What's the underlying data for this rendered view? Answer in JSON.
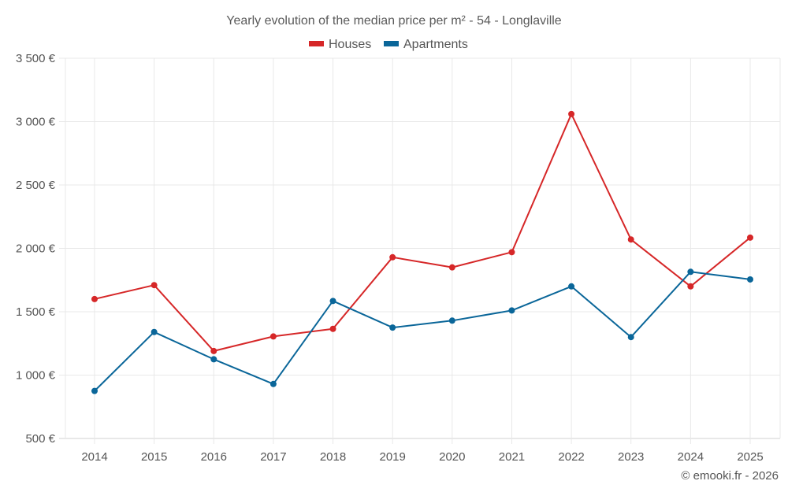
{
  "chart_data": {
    "type": "line",
    "title": "Yearly evolution of the median price per m² - 54 - Longlaville",
    "xlabel": "",
    "ylabel": "",
    "x": [
      "2014",
      "2015",
      "2016",
      "2017",
      "2018",
      "2019",
      "2020",
      "2021",
      "2022",
      "2023",
      "2024",
      "2025"
    ],
    "ylim": [
      500,
      3500
    ],
    "yticks": [
      500,
      1000,
      1500,
      2000,
      2500,
      3000,
      3500
    ],
    "ytick_labels": [
      "500 €",
      "1 000 €",
      "1 500 €",
      "2 000 €",
      "2 500 €",
      "3 000 €",
      "3 500 €"
    ],
    "grid": true,
    "legend_position": "top-center",
    "series": [
      {
        "name": "Houses",
        "color": "#d62728",
        "values": [
          1600,
          1710,
          1190,
          1305,
          1365,
          1930,
          1850,
          1970,
          3060,
          2070,
          1700,
          2085
        ]
      },
      {
        "name": "Apartments",
        "color": "#0a6699",
        "values": [
          875,
          1340,
          1125,
          930,
          1585,
          1375,
          1430,
          1510,
          1700,
          1300,
          1815,
          1755
        ]
      }
    ],
    "credit": "© emooki.fr - 2026"
  }
}
